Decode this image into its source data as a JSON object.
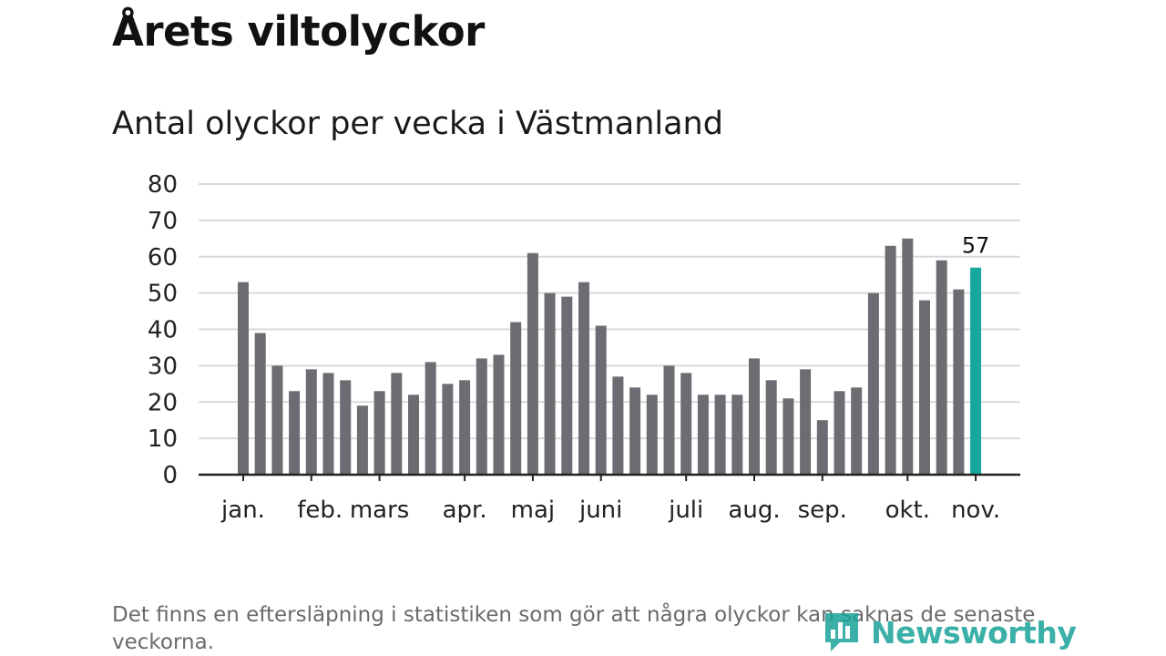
{
  "title": "Årets viltolyckor",
  "subtitle": "Antal olyckor per vecka i Västmanland",
  "note": "Det finns en eftersläpning i statistiken som gör att några olyckor kan saknas de senaste veckorna.",
  "brand": {
    "name": "Newsworthy",
    "color": "#1aa39a"
  },
  "colors": {
    "bar": "#6d6c72",
    "highlight": "#17a79c",
    "grid": "#d9d9d9",
    "axis": "#222222"
  },
  "chart_data": {
    "type": "bar",
    "title": "Antal olyckor per vecka i Västmanland",
    "xlabel": "",
    "ylabel": "",
    "ylim": [
      0,
      80
    ],
    "yticks": [
      0,
      10,
      20,
      30,
      40,
      50,
      60,
      70,
      80
    ],
    "grid": true,
    "values": [
      53,
      39,
      30,
      23,
      29,
      28,
      26,
      19,
      23,
      28,
      22,
      31,
      25,
      26,
      32,
      33,
      42,
      61,
      50,
      49,
      53,
      41,
      27,
      24,
      22,
      30,
      28,
      22,
      22,
      22,
      32,
      26,
      21,
      29,
      15,
      23,
      24,
      50,
      63,
      65,
      48,
      59,
      51,
      57
    ],
    "highlight_index": 43,
    "highlight_label": "57",
    "month_labels": [
      {
        "label": "jan.",
        "tick": 0,
        "at": 0
      },
      {
        "label": "feb.",
        "tick": 4,
        "at": 4.5
      },
      {
        "label": "mars",
        "tick": 8,
        "at": 8
      },
      {
        "label": "apr.",
        "tick": 13,
        "at": 13
      },
      {
        "label": "maj",
        "tick": 17,
        "at": 17
      },
      {
        "label": "juni",
        "tick": 21,
        "at": 21
      },
      {
        "label": "juli",
        "tick": 26,
        "at": 26
      },
      {
        "label": "aug.",
        "tick": 30,
        "at": 30
      },
      {
        "label": "sep.",
        "tick": 34,
        "at": 34
      },
      {
        "label": "okt.",
        "tick": 39,
        "at": 39
      },
      {
        "label": "nov.",
        "tick": 43,
        "at": 43
      }
    ]
  }
}
